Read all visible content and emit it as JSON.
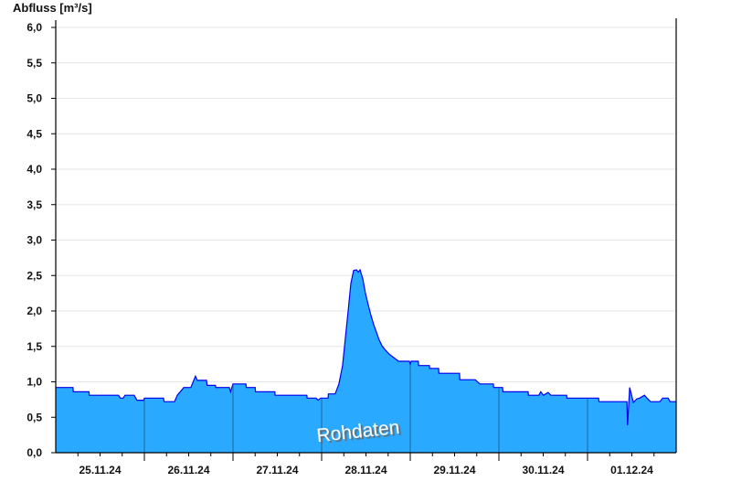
{
  "chart_data": {
    "type": "area",
    "ylabel": "Abfluss [m³/s]",
    "ylim": [
      0,
      6.0
    ],
    "yticks": [
      "0,0",
      "0,5",
      "1,0",
      "1,5",
      "2,0",
      "2,5",
      "3,0",
      "3,5",
      "4,0",
      "4,5",
      "5,0",
      "5,5",
      "6,0"
    ],
    "xlim": [
      "2024-11-25T00:00",
      "2024-12-02T00:00"
    ],
    "xticks": [
      "25.11.24",
      "26.11.24",
      "27.11.24",
      "28.11.24",
      "29.11.24",
      "30.11.24",
      "01.12.24"
    ],
    "grid": true,
    "watermark": "Rohdaten",
    "colors": {
      "fill": "#29a9ff",
      "line": "#0000ee",
      "day_line": "#1a5a7a",
      "grid": "#e6e6e6"
    },
    "series": [
      {
        "points": [
          [
            "2024-11-25T00:00",
            0.92
          ],
          [
            "2024-11-25T04:40",
            0.92
          ],
          [
            "2024-11-25T04:45",
            0.86
          ],
          [
            "2024-11-25T09:00",
            0.86
          ],
          [
            "2024-11-25T09:05",
            0.81
          ],
          [
            "2024-11-25T17:00",
            0.81
          ],
          [
            "2024-11-25T17:30",
            0.77
          ],
          [
            "2024-11-25T18:15",
            0.77
          ],
          [
            "2024-11-25T18:45",
            0.81
          ],
          [
            "2024-11-25T21:15",
            0.81
          ],
          [
            "2024-11-25T22:00",
            0.74
          ],
          [
            "2024-11-25T23:50",
            0.74
          ],
          [
            "2024-11-26T00:00",
            0.77
          ],
          [
            "2024-11-26T05:10",
            0.77
          ],
          [
            "2024-11-26T05:20",
            0.72
          ],
          [
            "2024-11-26T08:10",
            0.72
          ],
          [
            "2024-11-26T08:55",
            0.81
          ],
          [
            "2024-11-26T10:40",
            0.92
          ],
          [
            "2024-11-26T12:35",
            0.92
          ],
          [
            "2024-11-26T13:50",
            1.08
          ],
          [
            "2024-11-26T14:20",
            1.02
          ],
          [
            "2024-11-26T16:50",
            1.02
          ],
          [
            "2024-11-26T17:00",
            0.95
          ],
          [
            "2024-11-26T19:15",
            0.95
          ],
          [
            "2024-11-26T19:20",
            0.92
          ],
          [
            "2024-11-26T23:00",
            0.92
          ],
          [
            "2024-11-26T23:20",
            0.86
          ],
          [
            "2024-11-27T00:00",
            0.97
          ],
          [
            "2024-11-27T03:30",
            0.97
          ],
          [
            "2024-11-27T03:35",
            0.92
          ],
          [
            "2024-11-27T06:00",
            0.92
          ],
          [
            "2024-11-27T06:05",
            0.86
          ],
          [
            "2024-11-27T11:20",
            0.86
          ],
          [
            "2024-11-27T11:25",
            0.81
          ],
          [
            "2024-11-27T20:00",
            0.81
          ],
          [
            "2024-11-27T20:05",
            0.77
          ],
          [
            "2024-11-27T22:30",
            0.77
          ],
          [
            "2024-11-27T23:00",
            0.74
          ],
          [
            "2024-11-27T23:45",
            0.77
          ],
          [
            "2024-11-28T01:45",
            0.77
          ],
          [
            "2024-11-28T01:50",
            0.83
          ],
          [
            "2024-11-28T03:40",
            0.83
          ],
          [
            "2024-11-28T04:40",
            0.97
          ],
          [
            "2024-11-28T05:40",
            1.23
          ],
          [
            "2024-11-28T06:25",
            1.61
          ],
          [
            "2024-11-28T07:10",
            2.0
          ],
          [
            "2024-11-28T07:55",
            2.39
          ],
          [
            "2024-11-28T08:40",
            2.57
          ],
          [
            "2024-11-28T09:25",
            2.58
          ],
          [
            "2024-11-28T09:55",
            2.55
          ],
          [
            "2024-11-28T10:25",
            2.58
          ],
          [
            "2024-11-28T11:10",
            2.45
          ],
          [
            "2024-11-28T11:50",
            2.26
          ],
          [
            "2024-11-28T12:35",
            2.09
          ],
          [
            "2024-11-28T13:20",
            1.94
          ],
          [
            "2024-11-28T14:05",
            1.81
          ],
          [
            "2024-11-28T14:50",
            1.7
          ],
          [
            "2024-11-28T15:35",
            1.59
          ],
          [
            "2024-11-28T16:20",
            1.51
          ],
          [
            "2024-11-28T17:05",
            1.46
          ],
          [
            "2024-11-28T18:20",
            1.39
          ],
          [
            "2024-11-28T19:35",
            1.34
          ],
          [
            "2024-11-28T20:50",
            1.29
          ],
          [
            "2024-11-28T23:45",
            1.29
          ],
          [
            "2024-11-29T00:00",
            1.25
          ],
          [
            "2024-11-29T00:15",
            1.29
          ],
          [
            "2024-11-29T02:10",
            1.29
          ],
          [
            "2024-11-29T02:15",
            1.23
          ],
          [
            "2024-11-29T05:10",
            1.23
          ],
          [
            "2024-11-29T05:15",
            1.19
          ],
          [
            "2024-11-29T07:40",
            1.19
          ],
          [
            "2024-11-29T07:45",
            1.12
          ],
          [
            "2024-11-29T13:20",
            1.12
          ],
          [
            "2024-11-29T13:25",
            1.03
          ],
          [
            "2024-11-29T17:35",
            1.03
          ],
          [
            "2024-11-29T18:50",
            0.97
          ],
          [
            "2024-11-29T22:30",
            0.97
          ],
          [
            "2024-11-29T22:35",
            0.92
          ],
          [
            "2024-11-30T01:00",
            0.92
          ],
          [
            "2024-11-30T01:05",
            0.86
          ],
          [
            "2024-11-30T07:55",
            0.86
          ],
          [
            "2024-11-30T08:00",
            0.81
          ],
          [
            "2024-11-30T10:50",
            0.81
          ],
          [
            "2024-11-30T11:20",
            0.86
          ],
          [
            "2024-11-30T12:05",
            0.81
          ],
          [
            "2024-11-30T13:20",
            0.85
          ],
          [
            "2024-11-30T14:05",
            0.81
          ],
          [
            "2024-11-30T18:20",
            0.81
          ],
          [
            "2024-11-30T18:25",
            0.77
          ],
          [
            "2024-12-01T03:00",
            0.77
          ],
          [
            "2024-12-01T03:05",
            0.72
          ],
          [
            "2024-12-01T10:40",
            0.72
          ],
          [
            "2024-12-01T10:50",
            0.39
          ],
          [
            "2024-12-01T11:25",
            0.92
          ],
          [
            "2024-12-01T11:55",
            0.81
          ],
          [
            "2024-12-01T12:25",
            0.71
          ],
          [
            "2024-12-01T13:20",
            0.76
          ],
          [
            "2024-12-01T14:05",
            0.77
          ],
          [
            "2024-12-01T15:25",
            0.81
          ],
          [
            "2024-12-01T16:05",
            0.77
          ],
          [
            "2024-12-01T17:05",
            0.72
          ],
          [
            "2024-12-01T19:35",
            0.72
          ],
          [
            "2024-12-01T20:20",
            0.77
          ],
          [
            "2024-12-01T21:50",
            0.77
          ],
          [
            "2024-12-01T22:20",
            0.72
          ],
          [
            "2024-12-02T00:00",
            0.72
          ]
        ]
      }
    ]
  }
}
